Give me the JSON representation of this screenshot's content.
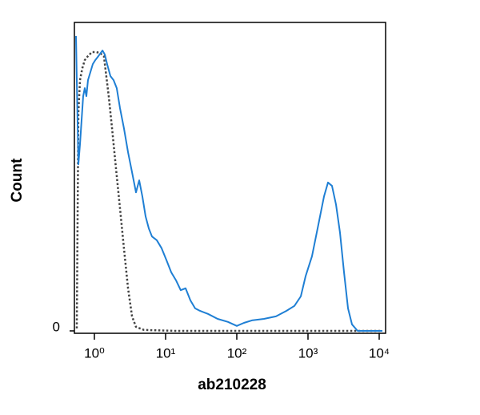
{
  "chart_data": {
    "type": "line",
    "x_label": "ab210228",
    "y_label": "Count",
    "x_scale": "log",
    "xlim": [
      0.524,
      12300
    ],
    "ylim": [
      0,
      100
    ],
    "xticks": [
      {
        "value": 1,
        "label": "10⁰"
      },
      {
        "value": 10,
        "label": "10¹"
      },
      {
        "value": 100,
        "label": "10²"
      },
      {
        "value": 1000,
        "label": "10³"
      },
      {
        "value": 10000,
        "label": "10⁴"
      }
    ],
    "yticks": [
      0
    ],
    "series": [
      {
        "color": "#1f7fd4",
        "linestyle": "solid",
        "x": [
          0.552,
          0.566,
          0.596,
          0.628,
          0.661,
          0.696,
          0.733,
          0.772,
          0.813,
          0.879,
          0.95,
          1.03,
          1.14,
          1.3,
          1.4,
          1.51,
          1.68,
          1.86,
          2.06,
          2.29,
          2.6,
          2.97,
          3.38,
          3.84,
          4.26,
          4.72,
          5.24,
          5.81,
          6.44,
          7.52,
          8.79,
          10.3,
          12.0,
          14.0,
          16.3,
          19.1,
          22.3,
          26.0,
          30.4,
          39.4,
          53.7,
          75.2,
          100,
          126,
          163,
          241,
          355,
          498,
          645,
          793,
          925,
          1138,
          1400,
          1679,
          1910,
          2174,
          2473,
          2813,
          3206,
          3648,
          4150,
          4977,
          6966,
          11090
        ],
        "values": [
          95.6,
          81.3,
          54.0,
          60.5,
          68.3,
          76.1,
          78.7,
          76.1,
          81.3,
          83.9,
          86.5,
          87.8,
          89.1,
          90.9,
          89.6,
          86.5,
          82.6,
          81.3,
          78.7,
          72.2,
          65.7,
          57.9,
          51.4,
          44.9,
          48.8,
          43.6,
          37.1,
          33.2,
          30.6,
          29.4,
          26.8,
          22.9,
          19.0,
          16.4,
          13.2,
          13.8,
          9.9,
          7.3,
          6.5,
          5.5,
          3.9,
          2.9,
          1.6,
          2.6,
          3.4,
          3.9,
          4.7,
          6.5,
          8.1,
          11.2,
          17.7,
          24.2,
          34.5,
          43.6,
          48.1,
          47.0,
          41.0,
          31.9,
          19.0,
          7.3,
          2.1,
          0,
          0,
          0
        ]
      },
      {
        "color": "#444444",
        "linestyle": "dotted",
        "x": [
          0.566,
          0.596,
          0.628,
          0.678,
          0.733,
          0.813,
          0.925,
          1.05,
          1.2,
          1.36,
          1.47,
          1.59,
          1.77,
          2.01,
          2.29,
          2.6,
          2.97,
          3.38,
          3.84,
          4.97,
          14.0,
          11090
        ],
        "values": [
          0.8,
          70.9,
          81.3,
          85.2,
          87.8,
          89.1,
          90.4,
          90.4,
          90.1,
          89.1,
          82.6,
          76.1,
          65.7,
          52.7,
          39.7,
          26.8,
          13.8,
          4.7,
          1.3,
          0.3,
          0,
          0
        ]
      }
    ]
  }
}
